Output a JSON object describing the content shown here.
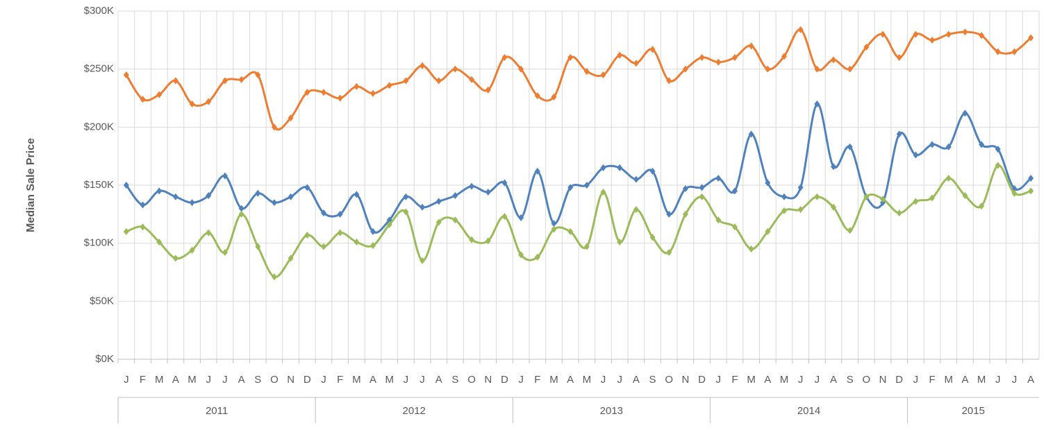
{
  "chart_data": {
    "type": "line",
    "y_label": "Median Sale Price",
    "categories": [
      "J",
      "F",
      "M",
      "A",
      "M",
      "J",
      "J",
      "A",
      "S",
      "O",
      "N",
      "D",
      "J",
      "F",
      "M",
      "A",
      "M",
      "J",
      "J",
      "A",
      "S",
      "O",
      "N",
      "D",
      "J",
      "F",
      "M",
      "A",
      "M",
      "J",
      "J",
      "A",
      "S",
      "O",
      "N",
      "D",
      "J",
      "F",
      "M",
      "A",
      "M",
      "J",
      "J",
      "A",
      "S",
      "O",
      "N",
      "D",
      "J",
      "F",
      "M",
      "A",
      "M",
      "J",
      "J",
      "A"
    ],
    "category_groups": [
      {
        "name": "2011",
        "count": 12
      },
      {
        "name": "2012",
        "count": 12
      },
      {
        "name": "2013",
        "count": 12
      },
      {
        "name": "2014",
        "count": 12
      },
      {
        "name": "2015",
        "count": 8
      }
    ],
    "ylim": [
      0,
      300000
    ],
    "yticks": [
      {
        "value": 0,
        "label": "$0K"
      },
      {
        "value": 50000,
        "label": "$50K"
      },
      {
        "value": 100000,
        "label": "$100K"
      },
      {
        "value": 150000,
        "label": "$150K"
      },
      {
        "value": 200000,
        "label": "$200K"
      },
      {
        "value": 250000,
        "label": "$250K"
      },
      {
        "value": 300000,
        "label": "$300K"
      }
    ],
    "grid": true,
    "smooth": true,
    "series": [
      {
        "color": "#ed7d31",
        "values": [
          245000,
          224000,
          228000,
          240000,
          220000,
          222000,
          240000,
          241000,
          245000,
          200000,
          208000,
          230000,
          230000,
          225000,
          235000,
          229000,
          236000,
          240000,
          253000,
          240000,
          250000,
          241000,
          232000,
          260000,
          250000,
          227000,
          226000,
          260000,
          248000,
          245000,
          262000,
          255000,
          267000,
          240000,
          250000,
          260000,
          256000,
          260000,
          270000,
          250000,
          261000,
          284000,
          250000,
          258000,
          250000,
          269000,
          280000,
          260000,
          280000,
          275000,
          280000,
          282000,
          279000,
          265000,
          265000,
          277000
        ]
      },
      {
        "color": "#4f81bd",
        "values": [
          150000,
          133000,
          145000,
          140000,
          135000,
          141000,
          158000,
          130000,
          143000,
          135000,
          140000,
          148000,
          126000,
          125000,
          142000,
          110000,
          120000,
          140000,
          131000,
          136000,
          141000,
          149000,
          144000,
          152000,
          122000,
          162000,
          117000,
          148000,
          150000,
          165000,
          165000,
          155000,
          162000,
          125000,
          147000,
          148000,
          156000,
          145000,
          194000,
          152000,
          140000,
          148000,
          220000,
          166000,
          183000,
          140000,
          135000,
          194000,
          176000,
          185000,
          183000,
          212000,
          185000,
          181000,
          147000,
          156000
        ]
      },
      {
        "color": "#9bbb59",
        "values": [
          110000,
          114000,
          101000,
          87000,
          94000,
          109000,
          92000,
          125000,
          97000,
          71000,
          87000,
          107000,
          97000,
          109000,
          101000,
          98000,
          116000,
          127000,
          85000,
          118000,
          120000,
          103000,
          102000,
          123000,
          90000,
          88000,
          112000,
          110000,
          97000,
          144000,
          101000,
          129000,
          105000,
          92000,
          125000,
          140000,
          120000,
          114000,
          95000,
          110000,
          128000,
          129000,
          140000,
          131000,
          111000,
          140000,
          138000,
          126000,
          136000,
          139000,
          156000,
          141000,
          132000,
          167000,
          143000,
          145000
        ]
      }
    ]
  }
}
